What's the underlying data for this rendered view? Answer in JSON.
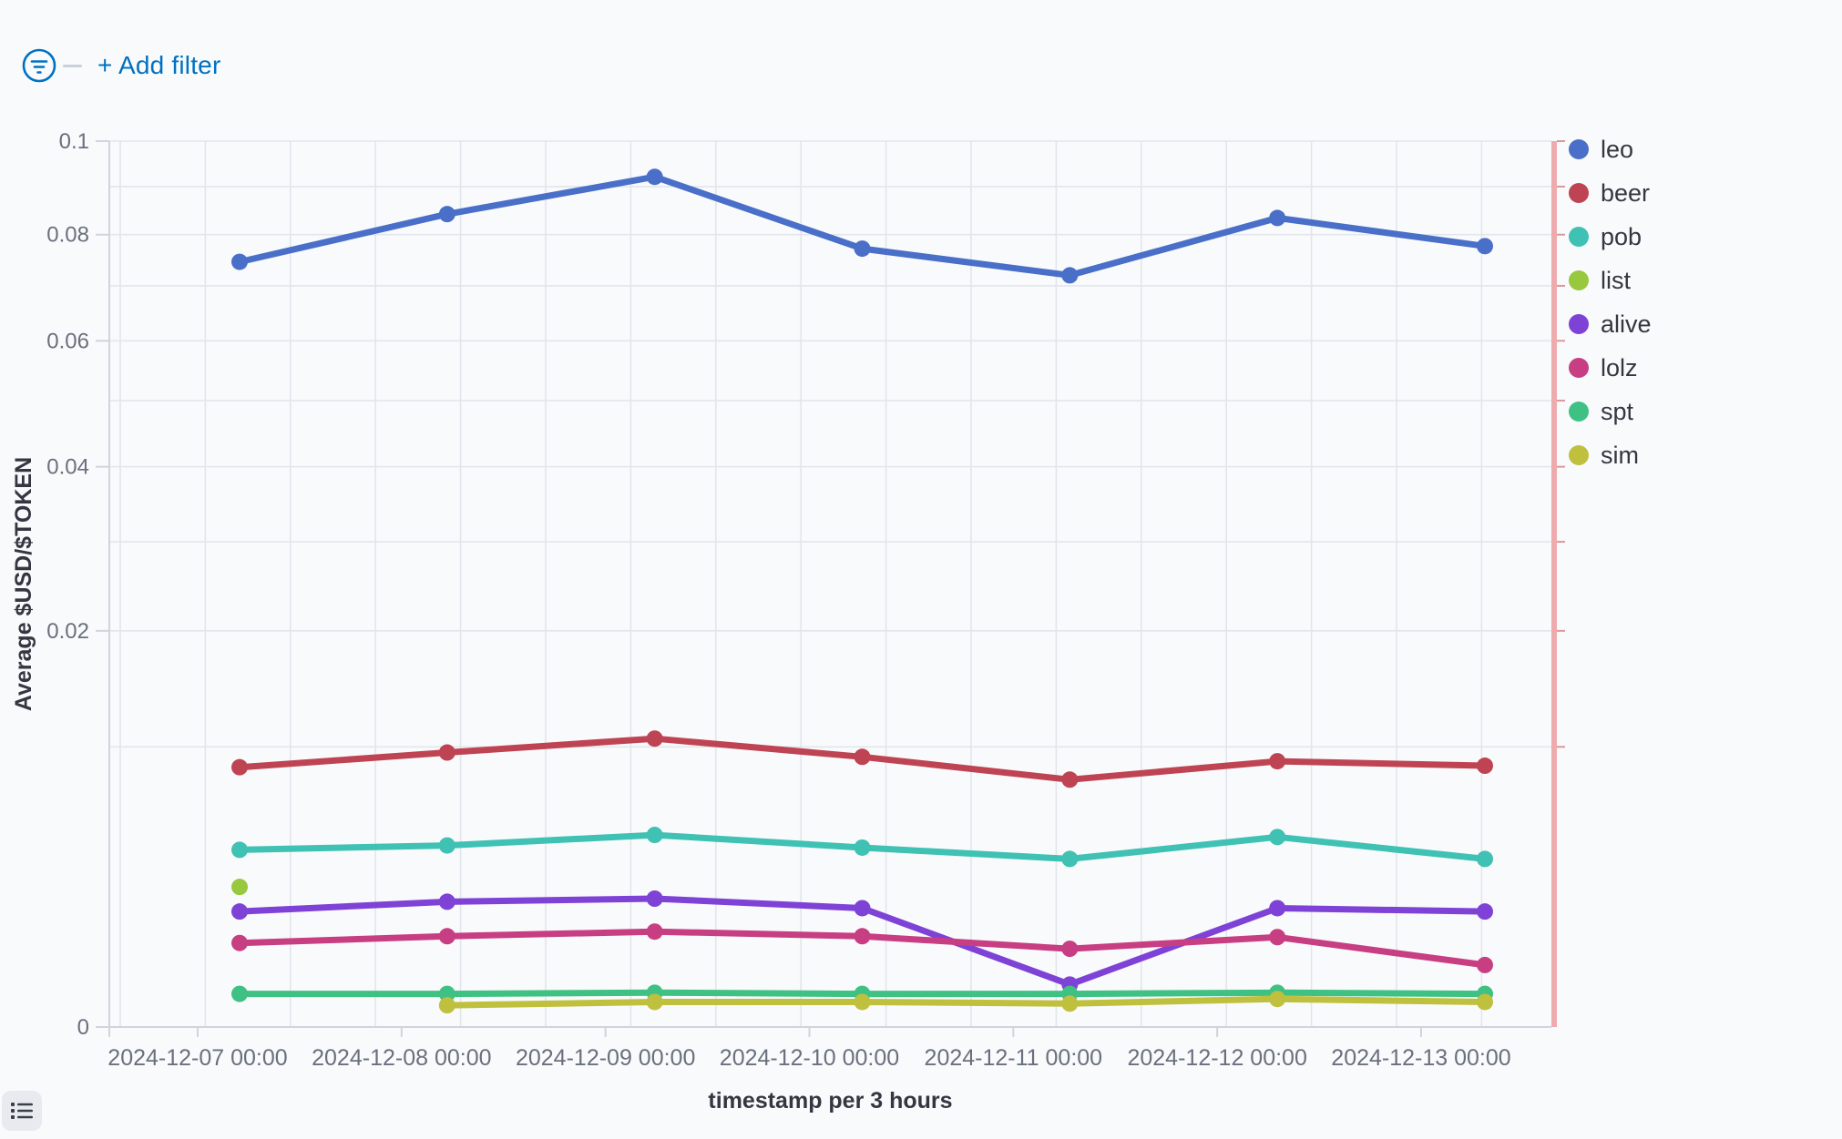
{
  "filter_bar": {
    "add_filter_label": "+ Add filter"
  },
  "colors": {
    "primary_blue": "#0071c2",
    "grid_line": "#e2e5eb",
    "axis_line": "#d0d4db",
    "tick_label": "#69707d",
    "axis_title": "#343741",
    "right_marker_pink": "#eeabad",
    "right_marker_tick": "#e0969a",
    "button_bg": "#e8eaef",
    "icon_dark": "#3a3f47"
  },
  "chart_data": {
    "type": "line",
    "title": "",
    "xlabel": "timestamp per 3 hours",
    "ylabel": "Average $USD/$TOKEN",
    "ylim": [
      0,
      0.1
    ],
    "y_scale": "sqrt",
    "grid": true,
    "legend_position": "right",
    "x": [
      "2024-12-07 00:00",
      "2024-12-08 00:00",
      "2024-12-09 00:00",
      "2024-12-10 00:00",
      "2024-12-11 00:00",
      "2024-12-12 00:00",
      "2024-12-13 00:00"
    ],
    "y_tick_labels": [
      "0",
      "0.02",
      "0.04",
      "0.06",
      "0.08",
      "0.1"
    ],
    "y_tick_values": [
      0,
      0.02,
      0.04,
      0.06,
      0.08,
      0.1
    ],
    "y_minor_step": 0.01,
    "series": [
      {
        "name": "leo",
        "color": "#4a6fc8",
        "values": [
          0.0746,
          0.0842,
          0.0921,
          0.0772,
          0.072,
          0.0834,
          0.0777
        ]
      },
      {
        "name": "beer",
        "color": "#bf4453",
        "values": [
          0.0086,
          0.0096,
          0.0106,
          0.0093,
          0.0078,
          0.009,
          0.0087
        ]
      },
      {
        "name": "pob",
        "color": "#3fc1b3",
        "values": [
          0.004,
          0.0042,
          0.0047,
          0.0041,
          0.0036,
          0.0046,
          0.0036
        ]
      },
      {
        "name": "list",
        "color": "#97c83e",
        "values": [
          0.0025,
          null,
          null,
          null,
          null,
          null,
          null
        ]
      },
      {
        "name": "alive",
        "color": "#7e42d6",
        "values": [
          0.0017,
          0.002,
          0.0021,
          0.0018,
          0.00023,
          0.0018,
          0.0017
        ]
      },
      {
        "name": "lolz",
        "color": "#c73e82",
        "values": [
          0.0009,
          0.00105,
          0.00116,
          0.00105,
          0.00078,
          0.00103,
          0.00049
        ]
      },
      {
        "name": "spt",
        "color": "#3fc183",
        "values": [
          0.00014,
          0.00014,
          0.00015,
          0.00014,
          0.00014,
          0.00015,
          0.00014
        ]
      },
      {
        "name": "sim",
        "color": "#bfc03e",
        "values": [
          null,
          6e-05,
          8e-05,
          8e-05,
          7e-05,
          0.0001,
          8e-05
        ]
      }
    ]
  }
}
